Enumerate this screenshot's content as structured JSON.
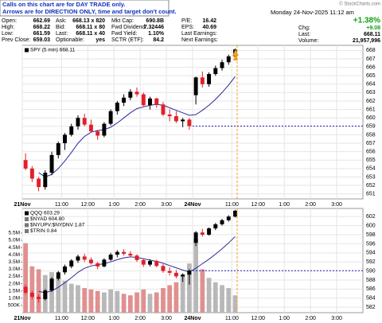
{
  "header": {
    "notice": [
      "Calls on this chart are for DAY TRADE only.",
      "Arrows are for DIRECTION ONLY, time and target don't count."
    ],
    "copyright": "© StockCharts.com",
    "date": "Monday  24-Nov-2025  11:12 am",
    "quote": [
      [
        {
          "label": "Open:",
          "value": "662.69"
        },
        {
          "label": "Ask:",
          "value": "668.13 x 820"
        },
        {
          "label": "Mkt Cap:",
          "value": "690.8B"
        },
        {
          "label": "P/E:",
          "value": "16.42"
        }
      ],
      [
        {
          "label": "High:",
          "value": "668.22"
        },
        {
          "label": "Bid:",
          "value": "668.11 x 80"
        },
        {
          "label": "Fwd Dividend:",
          "value": "7.32446"
        },
        {
          "label": "EPS:",
          "value": "40.69"
        }
      ],
      [
        {
          "label": "Low:",
          "value": "661.59"
        },
        {
          "label": "Last:",
          "value": "668.11 x 40"
        },
        {
          "label": "Fwd Yield:",
          "value": "1.10%"
        },
        {
          "label": "Last Earnings:"
        }
      ],
      [
        {
          "label": "Prev Close:",
          "value": "659.03"
        },
        {
          "label": "Optionable:",
          "value": "yes"
        },
        {
          "label": "SCTR (ETF):",
          "value": "84.2"
        },
        {
          "label": "Next Earnings:"
        }
      ]
    ],
    "change_pct": "+1.38%",
    "change_label": "Chg:",
    "change": "+9.08",
    "last_label": "Last:",
    "last": "668.11",
    "volume_label": "Volume:",
    "volume": "21,957,996"
  },
  "chart_data": [
    {
      "type": "candlestick",
      "legend": [
        "SPY (5 min) 668.11"
      ],
      "open": [
        655.0,
        654.0,
        652.8,
        651.8,
        653.5,
        655.6,
        657.0,
        658.0,
        659.0,
        660.0,
        659.2,
        658.4,
        657.9,
        659.3,
        660.8,
        661.8,
        662.4,
        663.1,
        662.8,
        661.5,
        662.3,
        661.6,
        660.4,
        660.2,
        659.6,
        659.8,
        662.69,
        664.8,
        664.0,
        665.2,
        665.9,
        666.6,
        667.3
      ],
      "high": [
        655.8,
        654.3,
        653.0,
        653.8,
        656.0,
        657.2,
        658.2,
        659.3,
        660.3,
        660.5,
        659.8,
        658.6,
        659.5,
        661.0,
        662.0,
        662.8,
        663.4,
        663.6,
        663.0,
        662.5,
        662.4,
        661.9,
        661.0,
        660.8,
        660.0,
        660.0,
        664.9,
        665.5,
        665.4,
        666.2,
        666.9,
        667.5,
        668.22
      ],
      "low": [
        653.8,
        652.4,
        651.3,
        651.5,
        653.2,
        655.2,
        656.2,
        657.8,
        658.6,
        659.0,
        658.3,
        657.4,
        657.7,
        659.1,
        660.4,
        661.4,
        662.1,
        662.5,
        661.4,
        661.0,
        661.2,
        660.2,
        659.6,
        659.4,
        658.9,
        658.6,
        661.59,
        663.6,
        663.7,
        665.0,
        665.6,
        666.3,
        667.1
      ],
      "close": [
        654.0,
        652.8,
        651.8,
        653.5,
        655.6,
        657.0,
        658.0,
        659.0,
        660.0,
        659.2,
        658.4,
        657.9,
        659.3,
        660.8,
        661.8,
        662.4,
        663.1,
        662.8,
        661.5,
        662.3,
        661.6,
        660.4,
        660.2,
        659.6,
        659.8,
        659.03,
        664.8,
        664.0,
        665.2,
        665.9,
        666.6,
        667.3,
        668.11
      ],
      "up_color": "#000000",
      "down_color": "#e0202a",
      "moving_average": {
        "color": "#2a2a9a",
        "values": [
          null,
          null,
          653.5,
          653.0,
          653.3,
          654.0,
          654.9,
          655.9,
          657.0,
          657.8,
          658.3,
          658.5,
          658.6,
          658.9,
          659.4,
          660.0,
          660.6,
          661.1,
          661.3,
          661.5,
          661.6,
          661.5,
          661.2,
          660.9,
          660.6,
          660.3,
          660.4,
          660.9,
          661.5,
          662.2,
          663.0,
          663.9,
          664.9
        ]
      },
      "hline": {
        "value": 659.03,
        "from": 26,
        "color": "#2020c0"
      },
      "now_x": 32.8,
      "now_color": "#f0a020",
      "xlim": [
        0,
        52
      ],
      "xticks": [
        {
          "value": 0,
          "label": "21Nov"
        },
        {
          "value": 6,
          "label": "11:00"
        },
        {
          "value": 10,
          "label": "12:00"
        },
        {
          "value": 14,
          "label": "1:00"
        },
        {
          "value": 18,
          "label": "2:00"
        },
        {
          "value": 22,
          "label": "3:00"
        },
        {
          "value": 26,
          "label": "24Nov"
        },
        {
          "value": 32,
          "label": "11:00"
        },
        {
          "value": 36,
          "label": "12:00"
        },
        {
          "value": 40,
          "label": "1:00"
        },
        {
          "value": 44,
          "label": "2:00"
        },
        {
          "value": 48,
          "label": "3:00"
        }
      ],
      "ylim": [
        650.4,
        668.6
      ],
      "yticks": [
        651,
        652,
        653,
        654,
        655,
        656,
        657,
        658,
        659,
        660,
        661,
        662,
        663,
        664,
        665,
        666,
        667,
        668
      ],
      "grid": true
    },
    {
      "type": "candlestick",
      "legend": [
        "QQQ 603.29",
        "$NYAD 604.80",
        "$NYUPV:$NYDNV 1.87",
        "$TRIN 0.84"
      ],
      "open": [
        586.5,
        585.2,
        584.3,
        583.8,
        585.7,
        588.3,
        589.7,
        591.0,
        592.3,
        593.2,
        592.5,
        591.7,
        591.0,
        592.5,
        593.6,
        594.2,
        593.8,
        593.4,
        592.4,
        591.4,
        592.2,
        591.1,
        590.0,
        589.6,
        588.8,
        589.2,
        596.2,
        598.5,
        598.0,
        599.4,
        600.3,
        601.2,
        602.0
      ],
      "high": [
        587.0,
        585.6,
        584.8,
        586.0,
        588.6,
        590.0,
        591.4,
        592.6,
        593.6,
        593.8,
        593.0,
        592.0,
        592.8,
        594.0,
        594.6,
        594.8,
        594.4,
        593.7,
        592.8,
        592.6,
        592.5,
        591.5,
        590.8,
        590.2,
        589.5,
        590.4,
        598.8,
        599.3,
        599.6,
        600.6,
        601.5,
        602.3,
        603.5
      ],
      "low": [
        584.8,
        583.8,
        583.0,
        583.5,
        585.4,
        587.9,
        589.2,
        590.6,
        591.8,
        592.0,
        591.4,
        590.4,
        590.8,
        592.2,
        593.0,
        593.4,
        593.0,
        592.0,
        590.9,
        591.0,
        590.8,
        589.6,
        589.0,
        588.4,
        587.6,
        587.0,
        595.5,
        597.6,
        597.8,
        599.0,
        600.0,
        600.9,
        601.8
      ],
      "close": [
        585.2,
        584.3,
        583.8,
        585.7,
        588.3,
        589.7,
        591.0,
        592.3,
        593.2,
        592.5,
        591.7,
        591.0,
        592.5,
        593.6,
        594.2,
        593.8,
        593.4,
        592.4,
        591.4,
        592.2,
        591.1,
        590.0,
        589.6,
        588.8,
        589.2,
        590.07,
        598.5,
        598.0,
        599.4,
        600.3,
        601.2,
        602.0,
        603.29
      ],
      "up_color": "#000000",
      "down_color": "#e0202a",
      "moving_average": {
        "color": "#2a2a9a",
        "values": [
          null,
          null,
          585.5,
          585.2,
          585.6,
          586.4,
          587.4,
          588.5,
          589.7,
          590.6,
          591.1,
          591.4,
          591.6,
          592.0,
          592.5,
          592.9,
          593.1,
          593.0,
          592.7,
          592.4,
          592.1,
          591.7,
          591.2,
          590.7,
          590.2,
          589.8,
          590.6,
          591.6,
          592.6,
          593.7,
          594.9,
          596.2,
          597.6
        ]
      },
      "hline": {
        "value": 590.07,
        "from": 26,
        "color": "#2020c0"
      },
      "now_x": 32.8,
      "now_color": "#f0a020",
      "xlim": [
        0,
        52
      ],
      "xticks": [
        {
          "value": 0,
          "label": "21Nov"
        },
        {
          "value": 6,
          "label": "11:00"
        },
        {
          "value": 10,
          "label": "12:00"
        },
        {
          "value": 14,
          "label": "1:00"
        },
        {
          "value": 18,
          "label": "2:00"
        },
        {
          "value": 22,
          "label": "3:00"
        },
        {
          "value": 26,
          "label": "24Nov"
        },
        {
          "value": 32,
          "label": "11:00"
        },
        {
          "value": 36,
          "label": "12:00"
        },
        {
          "value": 40,
          "label": "1:00"
        },
        {
          "value": 44,
          "label": "2:00"
        },
        {
          "value": 48,
          "label": "3:00"
        }
      ],
      "ylim": [
        580.8,
        603.8
      ],
      "yticks": [
        582,
        584,
        586,
        588,
        590,
        592,
        594,
        596,
        598,
        600,
        602
      ],
      "grid": true,
      "volume": {
        "values": [
          4800000,
          3200000,
          3000000,
          2600000,
          2800000,
          2400000,
          2200000,
          2000000,
          1900000,
          1700000,
          1600000,
          1500000,
          1400000,
          1600000,
          1500000,
          1300000,
          1200000,
          1400000,
          1600000,
          1300000,
          1400000,
          1700000,
          1900000,
          2100000,
          2600000,
          3400000,
          5100000,
          3000000,
          2400000,
          2100000,
          1900000,
          1700000,
          1200000
        ],
        "up_color": "#b8b8b8",
        "down_color": "#e09090",
        "ylim": [
          0,
          7200000
        ],
        "yticks": [
          {
            "value": 500000,
            "label": "500K"
          },
          {
            "value": 1000000,
            "label": "1.0M"
          },
          {
            "value": 1500000,
            "label": "1.5M"
          },
          {
            "value": 2000000,
            "label": "2.0M"
          },
          {
            "value": 2500000,
            "label": "2.5M"
          },
          {
            "value": 3000000,
            "label": "3.0M"
          },
          {
            "value": 3500000,
            "label": "3.5M"
          },
          {
            "value": 4000000,
            "label": "4.0M"
          },
          {
            "value": 4500000,
            "label": "4.5M"
          },
          {
            "value": 5000000,
            "label": "5.0M"
          },
          {
            "value": 5500000,
            "label": "5.5M"
          }
        ]
      }
    }
  ]
}
